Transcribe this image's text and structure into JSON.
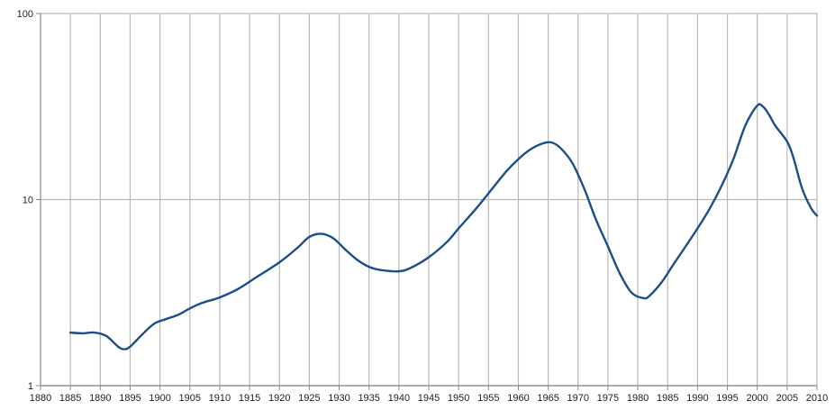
{
  "chart_data": {
    "type": "line",
    "title": "",
    "xlabel": "",
    "ylabel": "",
    "y_scale": "log",
    "xlim": [
      1880,
      2010
    ],
    "ylim": [
      1,
      100
    ],
    "grid": true,
    "x_ticks": [
      "1880",
      "1885",
      "1890",
      "1895",
      "1900",
      "1905",
      "1910",
      "1915",
      "1920",
      "1925",
      "1930",
      "1935",
      "1940",
      "1945",
      "1950",
      "1955",
      "1960",
      "1965",
      "1970",
      "1975",
      "1980",
      "1985",
      "1990",
      "1995",
      "2000",
      "2005",
      "2010"
    ],
    "y_ticks": [
      "1",
      "10",
      "100"
    ],
    "colors": {
      "line": "#1a4f8a",
      "grid": "#b9b9b9",
      "axis": "#888888"
    },
    "series": [
      {
        "values": [
          [
            1885,
            1.93
          ],
          [
            1887,
            1.91
          ],
          [
            1889,
            1.93
          ],
          [
            1891,
            1.85
          ],
          [
            1893,
            1.62
          ],
          [
            1894,
            1.57
          ],
          [
            1895,
            1.62
          ],
          [
            1897,
            1.88
          ],
          [
            1899,
            2.15
          ],
          [
            1901,
            2.28
          ],
          [
            1903,
            2.4
          ],
          [
            1905,
            2.6
          ],
          [
            1907,
            2.78
          ],
          [
            1910,
            2.98
          ],
          [
            1913,
            3.3
          ],
          [
            1916,
            3.8
          ],
          [
            1920,
            4.6
          ],
          [
            1923,
            5.5
          ],
          [
            1925,
            6.3
          ],
          [
            1927,
            6.55
          ],
          [
            1929,
            6.2
          ],
          [
            1931,
            5.4
          ],
          [
            1933,
            4.75
          ],
          [
            1935,
            4.35
          ],
          [
            1937,
            4.18
          ],
          [
            1940,
            4.12
          ],
          [
            1942,
            4.3
          ],
          [
            1945,
            4.9
          ],
          [
            1948,
            5.9
          ],
          [
            1950,
            7.0
          ],
          [
            1953,
            9.0
          ],
          [
            1955,
            10.8
          ],
          [
            1958,
            14.2
          ],
          [
            1960,
            16.5
          ],
          [
            1962,
            18.6
          ],
          [
            1964,
            20.0
          ],
          [
            1965.5,
            20.3
          ],
          [
            1967,
            19.0
          ],
          [
            1969,
            15.8
          ],
          [
            1971,
            11.5
          ],
          [
            1973,
            7.8
          ],
          [
            1975,
            5.6
          ],
          [
            1977,
            4.0
          ],
          [
            1979,
            3.15
          ],
          [
            1981,
            2.95
          ],
          [
            1982,
            3.05
          ],
          [
            1984,
            3.6
          ],
          [
            1986,
            4.5
          ],
          [
            1988,
            5.6
          ],
          [
            1990,
            7.0
          ],
          [
            1992,
            8.9
          ],
          [
            1994,
            11.8
          ],
          [
            1996,
            16.5
          ],
          [
            1998,
            25.0
          ],
          [
            2000,
            32.0
          ],
          [
            2001,
            31.5
          ],
          [
            2002,
            28.5
          ],
          [
            2003,
            25.0
          ],
          [
            2005,
            20.5
          ],
          [
            2006,
            17.0
          ],
          [
            2007.5,
            11.5
          ],
          [
            2009,
            9.0
          ],
          [
            2010,
            8.2
          ]
        ]
      }
    ]
  }
}
